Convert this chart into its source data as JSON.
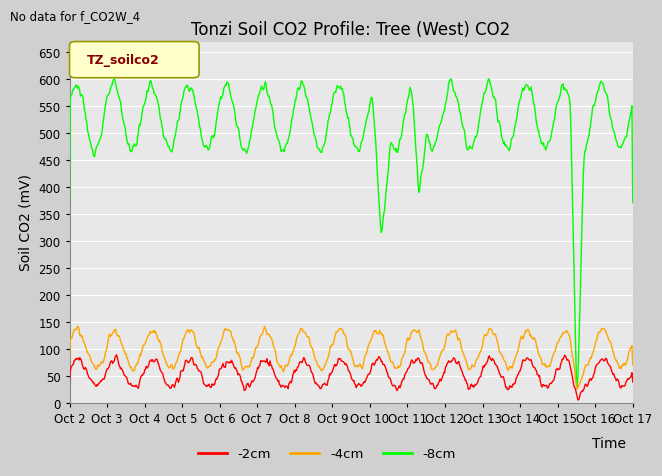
{
  "title": "Tonzi Soil CO2 Profile: Tree (West) CO2",
  "no_data_label": "No data for f_CO2W_4",
  "ylabel": "Soil CO2 (mV)",
  "xlabel": "Time",
  "legend_label": "TZ_soilco2",
  "ylim": [
    0,
    670
  ],
  "yticks": [
    0,
    50,
    100,
    150,
    200,
    250,
    300,
    350,
    400,
    450,
    500,
    550,
    600,
    650
  ],
  "xtick_labels": [
    "Oct 2",
    "Oct 3",
    "Oct 4",
    "Oct 5",
    "Oct 6",
    "Oct 7",
    "Oct 8",
    "Oct 9",
    "Oct 10",
    "Oct 11",
    "Oct 12",
    "Oct 13",
    "Oct 14",
    "Oct 15",
    "Oct 16",
    "Oct 17"
  ],
  "line_colors": {
    "2cm": "#ff0000",
    "4cm": "#ffa500",
    "8cm": "#00ff00"
  },
  "legend_items": [
    {
      "label": "-2cm",
      "color": "#ff0000"
    },
    {
      "label": "-4cm",
      "color": "#ffa500"
    },
    {
      "label": "-8cm",
      "color": "#00ff00"
    }
  ],
  "legend_box_color": "#ffffcc",
  "legend_box_edge": "#999900",
  "legend_text_color": "#880000",
  "plot_bg_color": "#e8e8e8",
  "fig_bg_color": "#d0d0d0",
  "grid_color": "#ffffff",
  "title_fontsize": 12,
  "axis_fontsize": 10,
  "tick_fontsize": 8.5,
  "n_days": 15,
  "pts_per_day": 48
}
